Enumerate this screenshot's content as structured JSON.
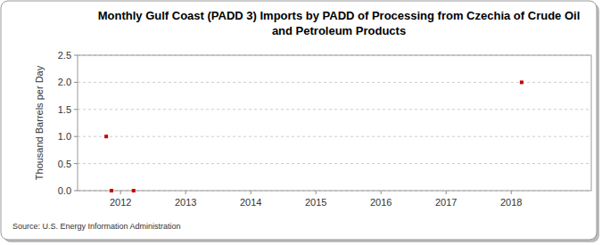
{
  "chart_data": {
    "type": "scatter",
    "title": "Monthly Gulf Coast (PADD 3) Imports by PADD of Processing from Czechia of Crude Oil and Petroleum Products",
    "y_label": "Thousand Barrels per Day",
    "source": "Source: U.S. Energy Information Administration",
    "x": [
      2011.78,
      2011.86,
      2012.2,
      2018.16
    ],
    "values": [
      1.0,
      0.0,
      0.0,
      2.0
    ],
    "color": "#cc0000",
    "marker": "square",
    "xlim": [
      2011.34,
      2019.23
    ],
    "xticks": [
      2012,
      2013,
      2014,
      2015,
      2016,
      2017,
      2018
    ],
    "ylim": [
      0,
      2.5
    ],
    "yticks": [
      {
        "value": 0,
        "label": "0.0"
      },
      {
        "value": 0.5,
        "label": "0.5"
      },
      {
        "value": 1.0,
        "label": "1.0"
      },
      {
        "value": 1.5,
        "label": "1.5"
      },
      {
        "value": 2.0,
        "label": "2.0"
      },
      {
        "value": 2.5,
        "label": "2.5"
      }
    ],
    "grid": true
  }
}
